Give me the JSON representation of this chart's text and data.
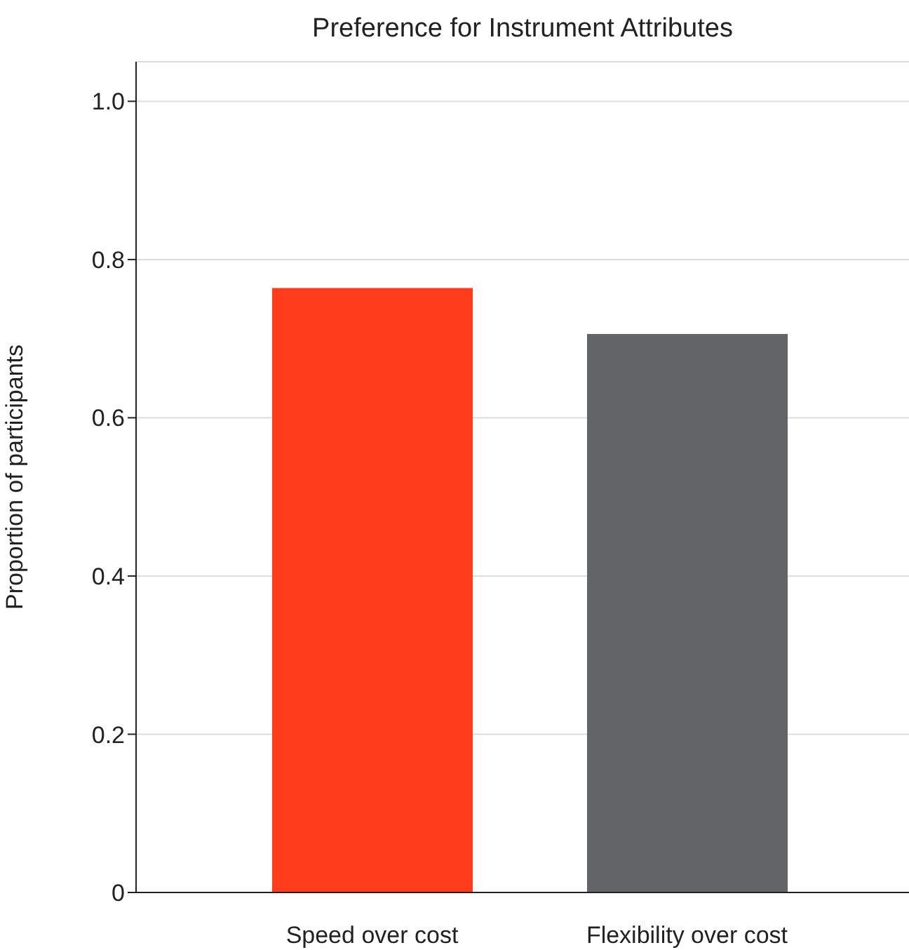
{
  "chart_data": {
    "type": "bar",
    "title": "Preference for Instrument Attributes",
    "ylabel": "Proportion of participants",
    "categories": [
      "Speed over cost",
      "Flexibility over cost"
    ],
    "values": [
      0.764,
      0.706
    ],
    "colors": [
      "#ff3d1a",
      "#636468"
    ],
    "ylim": [
      0,
      1.05
    ],
    "yticks": [
      0,
      0.2,
      0.4,
      0.6,
      0.8,
      {
        "value": 1,
        "label": "1.0"
      }
    ],
    "grid": "y",
    "legend": false
  }
}
